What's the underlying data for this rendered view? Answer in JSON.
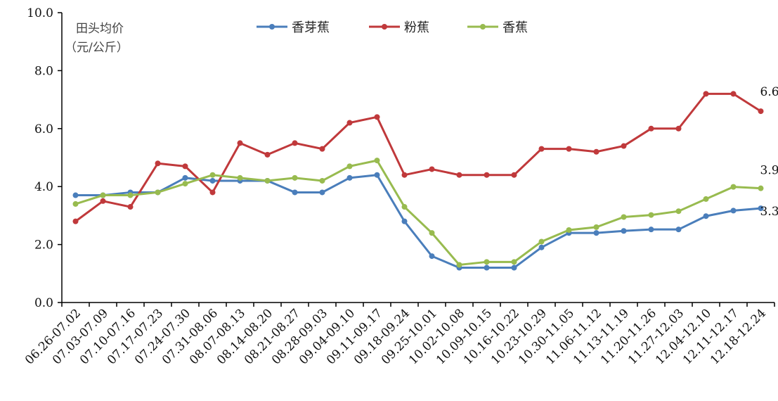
{
  "chart_data": {
    "type": "line",
    "ylabel": "田头均价（元/公斤）",
    "ylabel_lines": [
      "田头均价",
      "（元/公斤）"
    ],
    "ylim": [
      0,
      10
    ],
    "yticks": [
      "0.0",
      "2.0",
      "4.0",
      "6.0",
      "8.0",
      "10.0"
    ],
    "legend_position": "top-center",
    "categories": [
      "06.26-07.02",
      "07.03-07.09",
      "07.10-07.16",
      "07.17-07.23",
      "07.24-07.30",
      "07.31-08.06",
      "08.07-08.13",
      "08.14-08.20",
      "08.21-08.27",
      "08.28-09.03",
      "09.04-09.10",
      "09.11-09.17",
      "09.18-09.24",
      "09.25-10.01",
      "10.02-10.08",
      "10.09-10.15",
      "10.16-10.22",
      "10.23-10.29",
      "10.30-11.05",
      "11.06-11.12",
      "11.13-11.19",
      "11.20-11.26",
      "11.27-12.03",
      "12.04-12.10",
      "12.11-12.17",
      "12.18-12.24"
    ],
    "series": [
      {
        "name": "香芽蕉",
        "color": "#4a7ebb",
        "values": [
          3.7,
          3.7,
          3.8,
          3.8,
          4.3,
          4.2,
          4.2,
          4.2,
          3.8,
          3.8,
          4.3,
          4.4,
          2.8,
          1.6,
          1.2,
          1.2,
          1.2,
          1.9,
          2.4,
          2.4,
          2.47,
          2.52,
          2.52,
          2.98,
          3.17,
          3.25
        ],
        "end_label": "3.3"
      },
      {
        "name": "粉蕉",
        "color": "#c0393b",
        "values": [
          2.8,
          3.5,
          3.3,
          4.8,
          4.7,
          3.8,
          5.5,
          5.1,
          5.5,
          5.3,
          6.2,
          6.4,
          4.4,
          4.6,
          4.4,
          4.4,
          4.4,
          5.3,
          5.3,
          5.2,
          5.4,
          6.0,
          6.0,
          7.2,
          7.2,
          6.6
        ],
        "end_label": "6.6"
      },
      {
        "name": "香蕉",
        "color": "#98bb4f",
        "values": [
          3.4,
          3.7,
          3.7,
          3.8,
          4.1,
          4.4,
          4.3,
          4.2,
          4.3,
          4.2,
          4.7,
          4.9,
          3.3,
          2.4,
          1.3,
          1.4,
          1.4,
          2.1,
          2.5,
          2.6,
          2.95,
          3.02,
          3.15,
          3.57,
          3.99,
          3.94
        ],
        "end_label": "3.9"
      }
    ]
  }
}
